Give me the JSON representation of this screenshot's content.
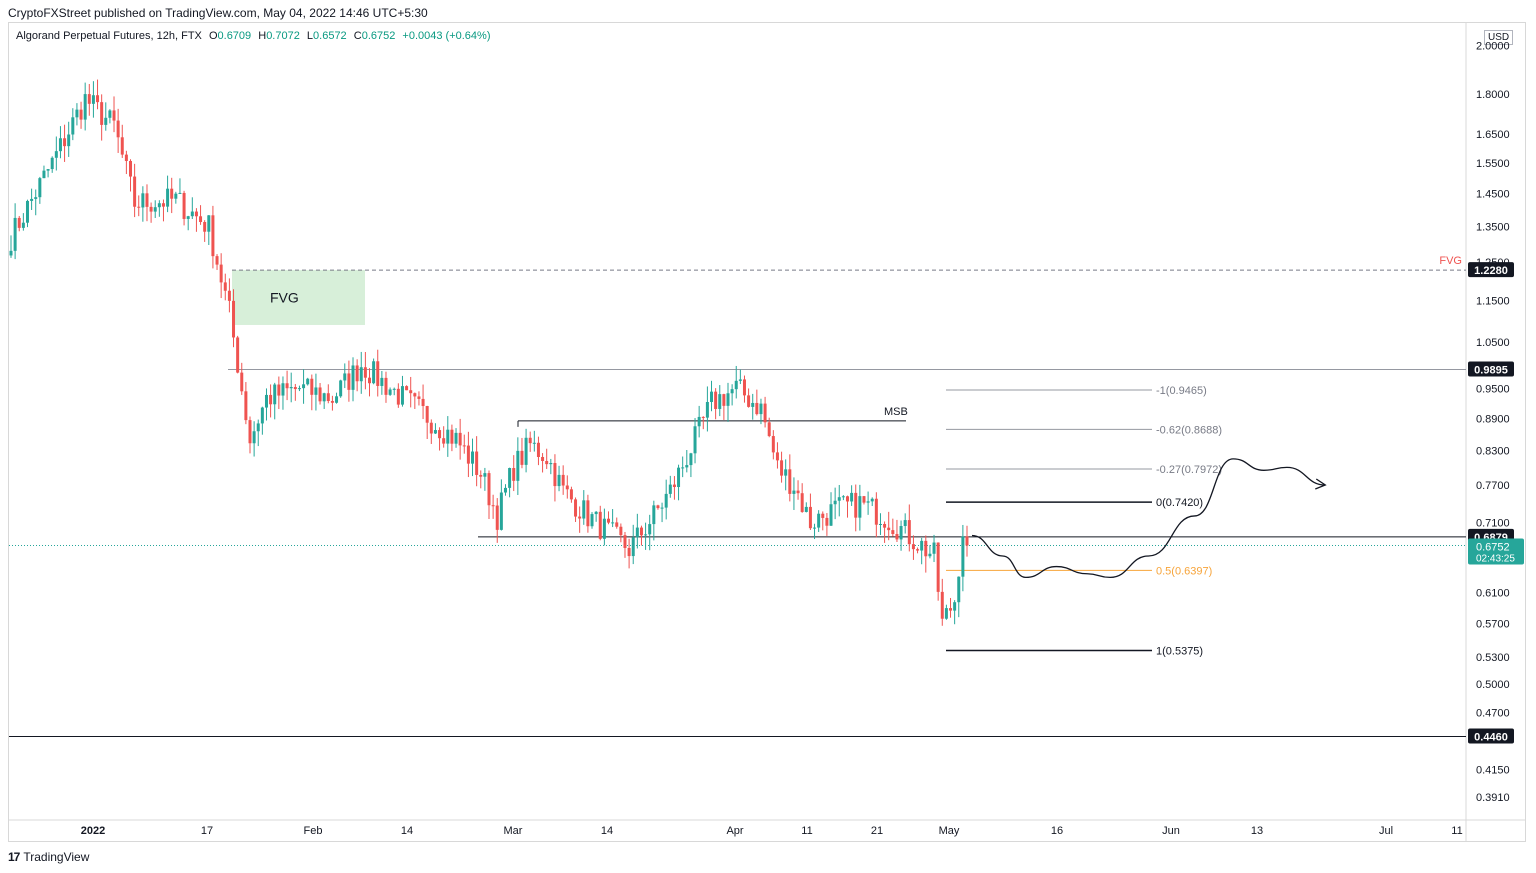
{
  "publisher": "CryptoFXStreet published on TradingView.com, May 04, 2022 14:46 UTC+5:30",
  "legend": {
    "symbol": "Algorand Perpetual Futures, 12h, FTX",
    "open_label": "O",
    "open": "0.6709",
    "high_label": "H",
    "high": "0.7072",
    "low_label": "L",
    "low": "0.6572",
    "close_label": "C",
    "close": "0.6752",
    "change": "+0.0043 (+0.64%)"
  },
  "currency": "USD",
  "footer": {
    "brand": "TradingView"
  },
  "colors": {
    "up": "#26a69a",
    "down": "#ef5350",
    "fvg_fill": "#d7efd9",
    "fib_half": "#f7a43a",
    "fvg_label": "#ef5350",
    "price_badge": "#26a69a"
  },
  "chart_data": {
    "type": "candlestick",
    "scale": "log",
    "ylim": [
      0.38,
      2.05
    ],
    "y_ticks": [
      "2.0000",
      "1.8000",
      "1.6500",
      "1.5500",
      "1.4500",
      "1.3500",
      "1.2500",
      "1.1500",
      "1.0500",
      "0.9500",
      "0.8900",
      "0.8300",
      "0.7700",
      "0.7100",
      "0.6100",
      "0.5700",
      "0.5300",
      "0.5000",
      "0.4700",
      "0.4150",
      "0.3910"
    ],
    "x_ticks": [
      "2022",
      "17",
      "Feb",
      "14",
      "Mar",
      "14",
      "Apr",
      "11",
      "21",
      "May",
      "16",
      "Jun",
      "13",
      "Jul",
      "11"
    ],
    "price_levels": [
      {
        "label": "1.2280",
        "value": 1.228,
        "style": "dashed"
      },
      {
        "label": "0.9895",
        "value": 0.9895,
        "style": "solid-gray"
      },
      {
        "label": "0.6879",
        "value": 0.6879,
        "style": "solid"
      },
      {
        "label": "0.4460",
        "value": 0.446,
        "style": "solid"
      }
    ],
    "current_price": {
      "value": "0.6752",
      "countdown": "02:43:25"
    },
    "fvg_right_label": "FVG",
    "fvg_box": {
      "label": "FVG",
      "top": 1.228,
      "bottom": 1.09
    },
    "msb": {
      "label": "MSB",
      "value": 0.885
    },
    "fib_levels": [
      {
        "label": "-1(0.9465)",
        "value": 0.9465
      },
      {
        "label": "-0.62(0.8688)",
        "value": 0.8688
      },
      {
        "label": "-0.27(0.7972)",
        "value": 0.7972
      },
      {
        "label": "0(0.7420)",
        "value": 0.742
      },
      {
        "label": "0.5(0.6397)",
        "value": 0.6397
      },
      {
        "label": "1(0.5375)",
        "value": 0.5375
      }
    ],
    "candle_pivots": [
      [
        0,
        1.32
      ],
      [
        10,
        1.55
      ],
      [
        18,
        1.78
      ],
      [
        25,
        1.68
      ],
      [
        30,
        1.42
      ],
      [
        40,
        1.43
      ],
      [
        48,
        1.35
      ],
      [
        53,
        1.12
      ],
      [
        58,
        0.85
      ],
      [
        62,
        0.93
      ],
      [
        70,
        0.95
      ],
      [
        78,
        0.93
      ],
      [
        85,
        1.0
      ],
      [
        92,
        0.95
      ],
      [
        100,
        0.9
      ],
      [
        108,
        0.85
      ],
      [
        114,
        0.79
      ],
      [
        118,
        0.72
      ],
      [
        122,
        0.8
      ],
      [
        126,
        0.84
      ],
      [
        130,
        0.82
      ],
      [
        134,
        0.76
      ],
      [
        140,
        0.72
      ],
      [
        150,
        0.67
      ],
      [
        156,
        0.72
      ],
      [
        160,
        0.76
      ],
      [
        166,
        0.85
      ],
      [
        170,
        0.92
      ],
      [
        176,
        0.95
      ],
      [
        182,
        0.91
      ],
      [
        186,
        0.8
      ],
      [
        190,
        0.77
      ],
      [
        194,
        0.71
      ],
      [
        200,
        0.73
      ],
      [
        206,
        0.74
      ],
      [
        212,
        0.72
      ],
      [
        216,
        0.7
      ],
      [
        220,
        0.68
      ],
      [
        224,
        0.66
      ],
      [
        226,
        0.57
      ],
      [
        229,
        0.6
      ],
      [
        231,
        0.7
      ],
      [
        232,
        0.675
      ]
    ],
    "projection": [
      [
        0.69,
        0
      ],
      [
        0.66,
        8
      ],
      [
        0.63,
        14
      ],
      [
        0.645,
        22
      ],
      [
        0.635,
        30
      ],
      [
        0.63,
        36
      ],
      [
        0.66,
        46
      ],
      [
        0.72,
        58
      ],
      [
        0.815,
        68
      ],
      [
        0.795,
        76
      ],
      [
        0.8,
        82
      ],
      [
        0.77,
        92
      ]
    ]
  }
}
